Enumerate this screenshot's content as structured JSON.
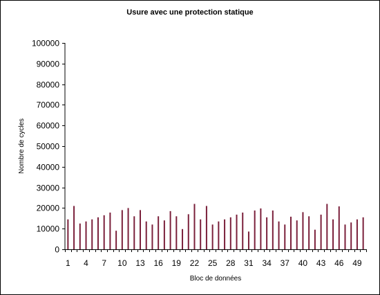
{
  "chart_data": {
    "type": "bar",
    "title": "Usure avec une protection statique",
    "xlabel": "Bloc de données",
    "ylabel": "Nombre de cycles",
    "ylim": [
      0,
      100000
    ],
    "yticks": [
      0,
      10000,
      20000,
      30000,
      40000,
      50000,
      60000,
      70000,
      80000,
      90000,
      100000
    ],
    "xtick_labels": [
      "1",
      "4",
      "7",
      "10",
      "13",
      "16",
      "19",
      "22",
      "25",
      "28",
      "31",
      "34",
      "37",
      "40",
      "43",
      "46",
      "49"
    ],
    "grid": false,
    "categories": [
      1,
      2,
      3,
      4,
      5,
      6,
      7,
      8,
      9,
      10,
      11,
      12,
      13,
      14,
      15,
      16,
      17,
      18,
      19,
      20,
      21,
      22,
      23,
      24,
      25,
      26,
      27,
      28,
      29,
      30,
      31,
      32,
      33,
      34,
      35,
      36,
      37,
      38,
      39,
      40,
      41,
      42,
      43,
      44,
      45,
      46,
      47,
      48,
      49,
      50
    ],
    "values": [
      14500,
      21000,
      12500,
      13500,
      14500,
      15500,
      16500,
      17800,
      9000,
      19000,
      20000,
      16000,
      19000,
      13500,
      12000,
      16000,
      14000,
      18500,
      16000,
      9800,
      17000,
      22000,
      14500,
      21000,
      12000,
      13500,
      14500,
      15500,
      16800,
      17800,
      8600,
      18800,
      19800,
      15500,
      18800,
      13500,
      12000,
      15800,
      14000,
      18000,
      16000,
      9500,
      16800,
      22000,
      14500,
      20800,
      12000,
      13000,
      14500,
      15500
    ],
    "colors": {
      "bar_fill": "#7a1f3a",
      "axis": "#000000",
      "background": "#ffffff"
    }
  }
}
